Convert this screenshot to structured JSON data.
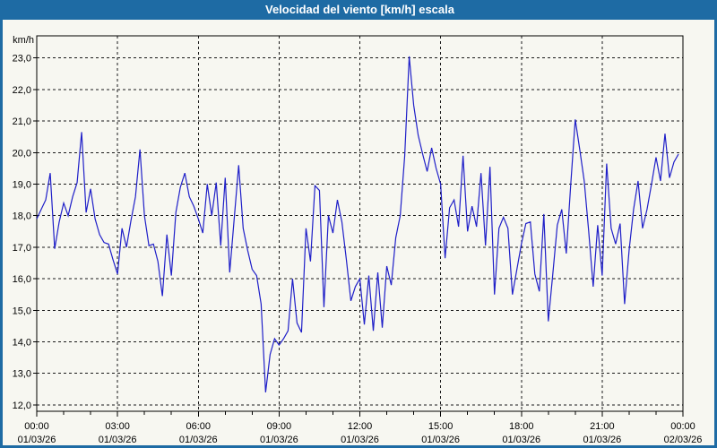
{
  "window": {
    "title": "Velocidad del viento [km/h] escala",
    "title_bar_color": "#1e6ba4",
    "title_text_color": "#ffffff",
    "frame_color": "#1e6ba4",
    "background_color": "#f7f7f1"
  },
  "chart_data": {
    "type": "line",
    "title": "Velocidad del viento [km/h] escala",
    "ylabel": "km/h",
    "xlabel": "",
    "line_color": "#1f1fc8",
    "grid": "dashed",
    "legend_position": "none",
    "ylim": [
      11.8,
      23.7
    ],
    "x_hours_span": 24,
    "sample_interval_minutes": 10,
    "y_ticks": [
      {
        "value": 23,
        "label": "23,0"
      },
      {
        "value": 22,
        "label": "22,0"
      },
      {
        "value": 21,
        "label": "21,0"
      },
      {
        "value": 20,
        "label": "20,0"
      },
      {
        "value": 19,
        "label": "19,0"
      },
      {
        "value": 18,
        "label": "18,0"
      },
      {
        "value": 17,
        "label": "17,0"
      },
      {
        "value": 16,
        "label": "16,0"
      },
      {
        "value": 15,
        "label": "15,0"
      },
      {
        "value": 14,
        "label": "14,0"
      },
      {
        "value": 13,
        "label": "13,0"
      },
      {
        "value": 12,
        "label": "12,0"
      }
    ],
    "x_ticks": [
      {
        "hour": 0,
        "time": "00:00",
        "date": "01/03/26"
      },
      {
        "hour": 3,
        "time": "03:00",
        "date": "01/03/26"
      },
      {
        "hour": 6,
        "time": "06:00",
        "date": "01/03/26"
      },
      {
        "hour": 9,
        "time": "09:00",
        "date": "01/03/26"
      },
      {
        "hour": 12,
        "time": "12:00",
        "date": "01/03/26"
      },
      {
        "hour": 15,
        "time": "15:00",
        "date": "01/03/26"
      },
      {
        "hour": 18,
        "time": "18:00",
        "date": "01/03/26"
      },
      {
        "hour": 21,
        "time": "21:00",
        "date": "01/03/26"
      },
      {
        "hour": 24,
        "time": "00:00",
        "date": "02/03/26"
      }
    ],
    "x_minor_tick_every_hours": 1,
    "values": [
      17.9,
      18.2,
      18.5,
      19.35,
      16.95,
      17.8,
      18.4,
      18.0,
      18.6,
      19.05,
      20.65,
      18.1,
      18.85,
      17.9,
      17.4,
      17.15,
      17.1,
      16.6,
      16.15,
      17.6,
      17.0,
      17.85,
      18.6,
      20.1,
      18.0,
      17.05,
      17.1,
      16.55,
      15.45,
      17.4,
      16.1,
      18.1,
      18.9,
      19.35,
      18.6,
      18.3,
      17.9,
      17.45,
      19.0,
      18.0,
      19.05,
      17.05,
      19.2,
      16.2,
      17.9,
      19.6,
      17.6,
      16.9,
      16.3,
      16.1,
      15.2,
      12.4,
      13.6,
      14.1,
      13.9,
      14.1,
      14.35,
      16.0,
      14.6,
      14.3,
      17.6,
      16.55,
      18.95,
      18.8,
      15.1,
      18.0,
      17.45,
      18.5,
      17.8,
      16.6,
      15.3,
      15.75,
      16.0,
      14.55,
      16.1,
      14.35,
      16.2,
      14.45,
      16.4,
      15.8,
      17.3,
      18.0,
      19.9,
      23.05,
      21.5,
      20.55,
      19.95,
      19.4,
      20.15,
      19.5,
      19.0,
      16.65,
      18.25,
      18.5,
      17.65,
      19.9,
      17.5,
      18.3,
      17.65,
      19.35,
      17.05,
      19.55,
      15.5,
      17.6,
      17.95,
      17.6,
      15.5,
      16.3,
      17.1,
      17.75,
      17.8,
      16.15,
      15.6,
      18.05,
      14.65,
      16.15,
      17.7,
      18.2,
      16.8,
      19.0,
      21.05,
      20.1,
      19.1,
      17.5,
      15.75,
      17.7,
      16.1,
      19.65,
      17.6,
      17.1,
      17.75,
      15.2,
      16.9,
      18.2,
      19.1,
      17.6,
      18.2,
      19.0,
      19.85,
      19.1,
      20.6,
      19.2,
      19.7,
      19.95
    ]
  }
}
